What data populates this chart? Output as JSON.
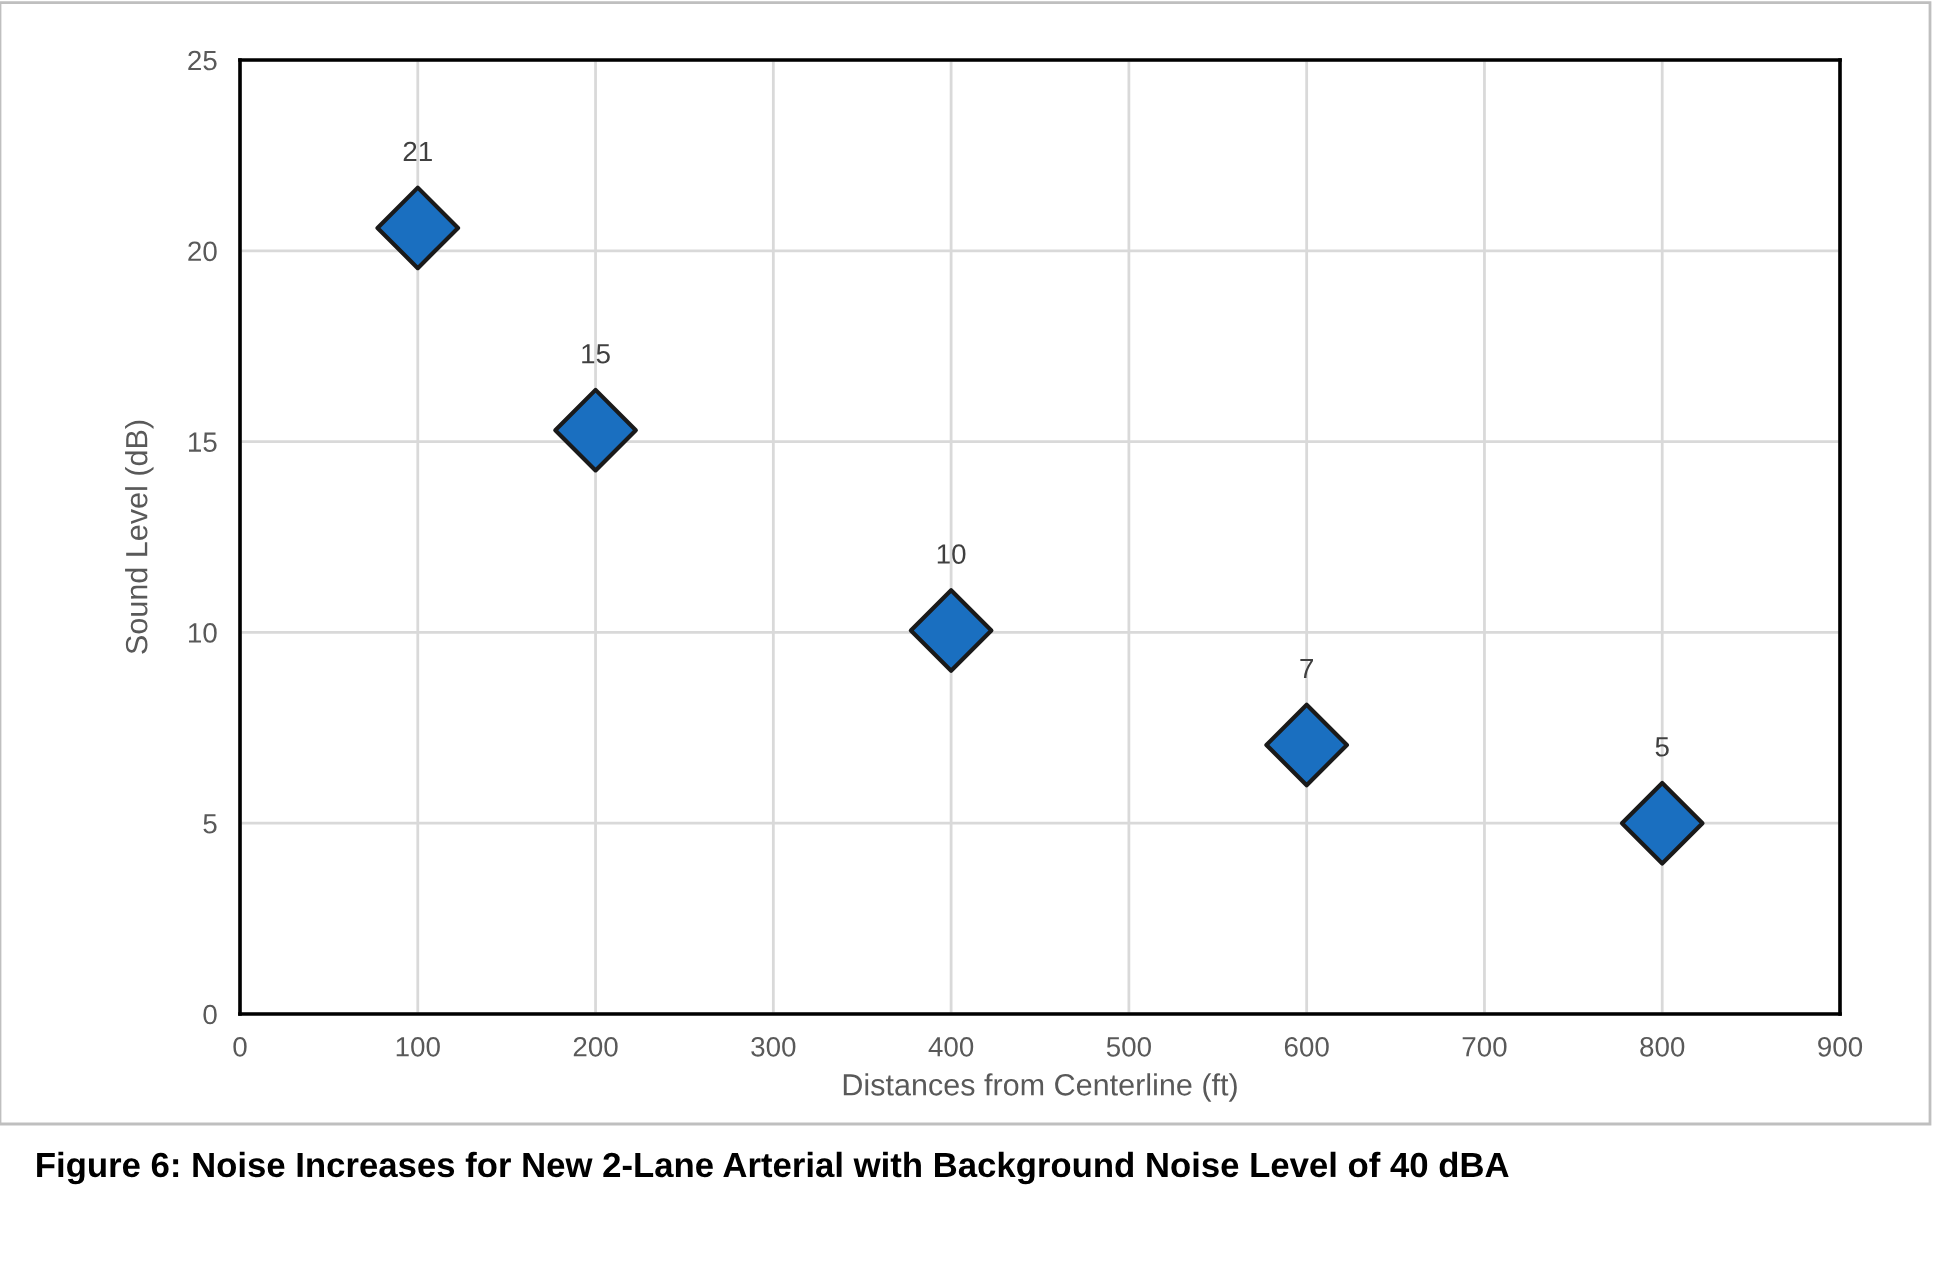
{
  "chart_data": {
    "type": "scatter",
    "x": [
      100,
      200,
      400,
      600,
      800
    ],
    "series": [
      {
        "color": "#1a6fc0",
        "values": [
          20.6,
          15.3,
          10.05,
          7.05,
          5.0
        ],
        "value_labels": [
          "21",
          "15",
          "10",
          "7",
          "5"
        ]
      }
    ],
    "xlabel": "Distances from Centerline (ft)",
    "ylabel": "Sound Level (dB)",
    "xlim": [
      0,
      900
    ],
    "xticks": [
      0,
      100,
      200,
      300,
      400,
      500,
      600,
      700,
      800,
      900
    ],
    "ylim": [
      0,
      25
    ],
    "yticks": [
      0,
      5,
      10,
      15,
      20,
      25
    ],
    "grid": true,
    "marker": "diamond",
    "annotations": [
      "Figure 6: Noise Increases for New 2-Lane Arterial with Background Noise Level of 40 dBA"
    ]
  }
}
